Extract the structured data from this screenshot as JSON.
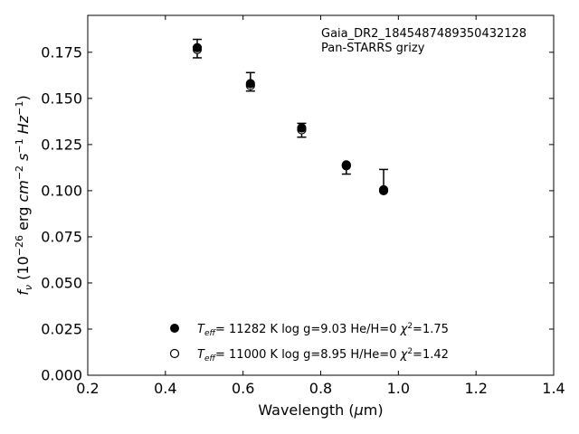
{
  "chart_data": {
    "type": "scatter",
    "xlabel": "Wavelength (μm)",
    "ylabel": "f_ν (10^-26 erg cm^-2 s^-1 Hz^-1)",
    "xlim": [
      0.2,
      1.4
    ],
    "ylim": [
      0.0,
      0.195
    ],
    "xticks": [
      0.2,
      0.4,
      0.6,
      0.8,
      1.0,
      1.2,
      1.4
    ],
    "yticks": [
      0.0,
      0.025,
      0.05,
      0.075,
      0.1,
      0.125,
      0.15,
      0.175
    ],
    "xtick_labels": [
      "0.2",
      "0.4",
      "0.6",
      "0.8",
      "1.0",
      "1.2",
      "1.4"
    ],
    "ytick_labels": [
      "0.000",
      "0.025",
      "0.050",
      "0.075",
      "0.100",
      "0.125",
      "0.150",
      "0.175"
    ],
    "grid": false,
    "annotation": [
      "Gaia_DR2_1845487489350432128",
      "Pan-STARRS grizy"
    ],
    "observed": {
      "x": [
        0.482,
        0.619,
        0.751,
        0.866,
        0.962
      ],
      "y": [
        0.177,
        0.158,
        0.1335,
        0.1135,
        0.1
      ],
      "yerr_low": [
        0.005,
        0.004,
        0.0045,
        0.0045,
        0.0
      ],
      "yerr_high": [
        0.005,
        0.006,
        0.003,
        0.0,
        0.0115
      ]
    },
    "series": [
      {
        "marker": "filled-circle",
        "x": [
          0.482,
          0.619,
          0.751,
          0.866,
          0.962
        ],
        "y": [
          0.1775,
          0.158,
          0.134,
          0.114,
          0.1
        ],
        "legend": {
          "teff": "= 11282 K",
          "logg": "log g=9.03",
          "comp": "He/H=0",
          "chi2": "=1.75"
        }
      },
      {
        "marker": "open-circle",
        "x": [
          0.482,
          0.619,
          0.751,
          0.866,
          0.962
        ],
        "y": [
          0.1765,
          0.157,
          0.133,
          0.1135,
          0.1005
        ],
        "legend": {
          "teff": "= 11000 K",
          "logg": "log g=8.95",
          "comp": "H/He=0",
          "chi2": "=1.42"
        }
      }
    ],
    "legend_position": "lower-center"
  }
}
